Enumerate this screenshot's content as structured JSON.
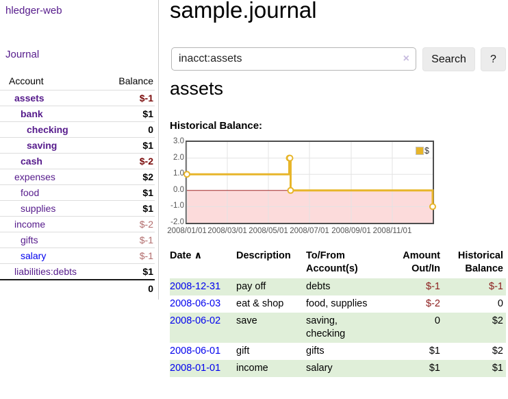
{
  "app": {
    "title": "hledger-web"
  },
  "colors": {
    "link_purple": "#551a8b",
    "link_blue": "#0000ee",
    "negative_strong": "#7a0b0b",
    "negative_soft": "#b26d6d",
    "negative_table": "#8b1c1c",
    "stripe_green": "#e0efd9",
    "chart_gold": "#e7b52a",
    "chart_negative_fill": "#fcdbdb",
    "zero_line": "#a52a2a",
    "sidebar_divider": "#cccccc"
  },
  "sidebar": {
    "nav": {
      "journal": "Journal"
    },
    "accounts_header": {
      "account": "Account",
      "balance": "Balance"
    },
    "accounts": [
      {
        "name": "assets",
        "balance": "$-1"
      },
      {
        "name": "bank",
        "balance": "$1"
      },
      {
        "name": "checking",
        "balance": "0"
      },
      {
        "name": "saving",
        "balance": "$1"
      },
      {
        "name": "cash",
        "balance": "$-2"
      },
      {
        "name": "expenses",
        "balance": "$2"
      },
      {
        "name": "food",
        "balance": "$1"
      },
      {
        "name": "supplies",
        "balance": "$1"
      },
      {
        "name": "income",
        "balance": "$-2"
      },
      {
        "name": "gifts",
        "balance": "$-1"
      },
      {
        "name": "salary",
        "balance": "$-1"
      },
      {
        "name": "liabilities:debts",
        "balance": "$1"
      }
    ],
    "total": "0"
  },
  "main": {
    "title": "sample.journal",
    "search": {
      "value": "inacct:assets",
      "clear_icon": "×",
      "button": "Search",
      "help_button": "?"
    },
    "account_heading": "assets",
    "chart_label": "Historical Balance:"
  },
  "chart_data": {
    "type": "line",
    "step": true,
    "title": "Historical Balance",
    "x_range": [
      "2008-01-01",
      "2008-12-31"
    ],
    "ylim": [
      -2,
      3
    ],
    "x_ticks": [
      "2008/01/01",
      "2008/03/01",
      "2008/05/01",
      "2008/07/01",
      "2008/09/01",
      "2008/11/01"
    ],
    "y_ticks": [
      3.0,
      2.0,
      1.0,
      0.0,
      -1.0,
      -2.0
    ],
    "series": [
      {
        "name": "$",
        "color": "#e7b52a",
        "points": [
          [
            "2008-01-01",
            1
          ],
          [
            "2008-06-01",
            2
          ],
          [
            "2008-06-02",
            2
          ],
          [
            "2008-06-03",
            0
          ],
          [
            "2008-12-31",
            -1
          ]
        ]
      }
    ],
    "negative_fill": "#fcdbdb",
    "zero_line_color": "#a52a2a",
    "grid_color": "#e3e3e3",
    "legend_position": "top-right",
    "grid": true
  },
  "register": {
    "headers": {
      "date": "Date",
      "sort_icon": "∧",
      "description": "Description",
      "accounts": "To/From Account(s)",
      "amount": "Amount Out/In",
      "balance": "Historical Balance"
    },
    "rows": [
      {
        "date": "2008-12-31",
        "description": "pay off",
        "accounts": "debts",
        "amount": "$-1",
        "balance": "$-1"
      },
      {
        "date": "2008-06-03",
        "description": "eat & shop",
        "accounts": "food, supplies",
        "amount": "$-2",
        "balance": "0"
      },
      {
        "date": "2008-06-02",
        "description": "save",
        "accounts": "saving, checking",
        "amount": "0",
        "balance": "$2"
      },
      {
        "date": "2008-06-01",
        "description": "gift",
        "accounts": "gifts",
        "amount": "$1",
        "balance": "$2"
      },
      {
        "date": "2008-01-01",
        "description": "income",
        "accounts": "salary",
        "amount": "$1",
        "balance": "$1"
      }
    ]
  }
}
